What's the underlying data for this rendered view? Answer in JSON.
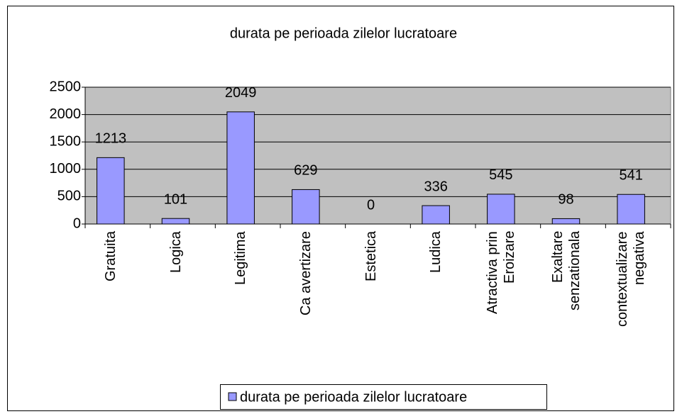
{
  "chart_data": {
    "type": "bar",
    "title": "durata pe perioada zilelor lucratoare",
    "categories": [
      "Gratuita",
      "Logica",
      "Legitima",
      "Ca avertizare",
      "Estetica",
      "Ludica",
      "Atractiva prin\nEroizare",
      "Exaltare\nsenzationala",
      "contextualizare\nnegativa"
    ],
    "series": [
      {
        "name": "durata pe perioada zilelor lucratoare",
        "color": "#9999ff",
        "values": [
          1213,
          101,
          2049,
          629,
          0,
          336,
          545,
          98,
          541
        ]
      }
    ],
    "ylim": [
      0,
      2500
    ],
    "yticks": [
      0,
      500,
      1000,
      1500,
      2000,
      2500
    ],
    "grid": true,
    "legend": "bottom"
  }
}
